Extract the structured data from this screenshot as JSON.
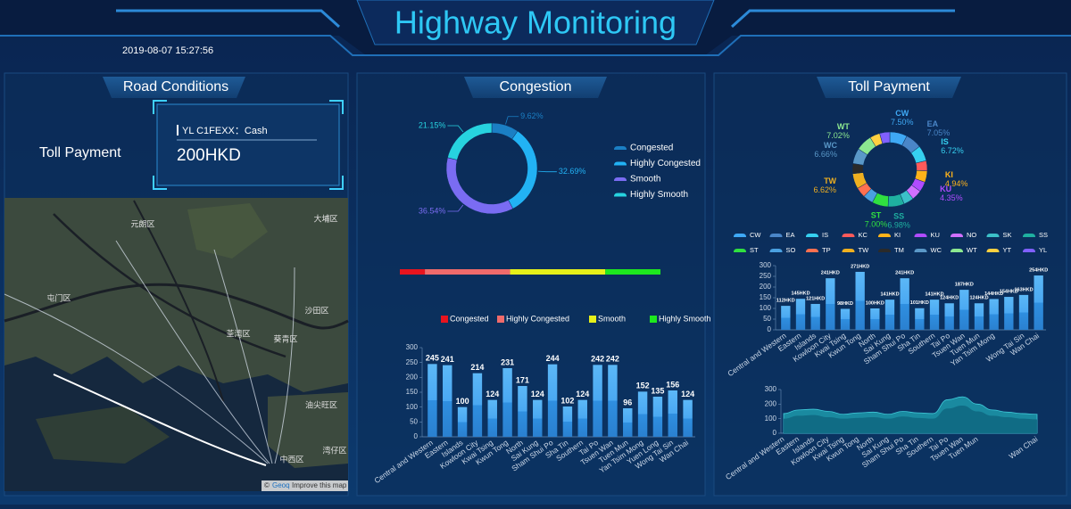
{
  "header": {
    "title": "Highway Monitoring",
    "datetime": "2019-08-07 15:27:56"
  },
  "road_conditions": {
    "title": "Road Conditions",
    "label": "Toll Payment",
    "plate": "YL C1FEXX：Cash",
    "amount": "200HKD",
    "map_labels": [
      "元朗区",
      "屯门区",
      "大埔区",
      "沙田区",
      "荃湾区",
      "葵青区",
      "油尖旺区",
      "湾仔区",
      "中西区"
    ],
    "attribution": {
      "prefix": "©",
      "link": "Geoq",
      "suffix": "Improve this map"
    }
  },
  "congestion": {
    "title": "Congestion"
  },
  "toll_payment": {
    "title": "Toll Payment"
  },
  "chart_data": [
    {
      "type": "pie",
      "donut": true,
      "categories": [
        "Congested",
        "Highly Congested",
        "Smooth",
        "Highly Smooth"
      ],
      "values": [
        9.62,
        32.69,
        36.54,
        21.15
      ],
      "value_labels": [
        "9.62%",
        "32.69%",
        "36.54%",
        "21.15%"
      ],
      "colors": [
        "#1b7fc4",
        "#22b2f4",
        "#7a6cf2",
        "#27d3df"
      ]
    },
    {
      "type": "bar",
      "stacked": true,
      "orientation": "horizontal",
      "series": [
        {
          "name": "Congested",
          "color": "#e8141e",
          "values": [
            9.62
          ]
        },
        {
          "name": "Highly Congested",
          "color": "#f06b6b",
          "values": [
            32.69
          ]
        },
        {
          "name": "Smooth",
          "color": "#e6f01a",
          "values": [
            36.54
          ]
        },
        {
          "name": "Highly Smooth",
          "color": "#1ee81e",
          "values": [
            21.15
          ]
        }
      ]
    },
    {
      "type": "bar",
      "categories": [
        "Central and Western",
        "Eastern",
        "Islands",
        "Kowloon City",
        "Kwai Tsing",
        "Kwun Tong",
        "North",
        "Sai Kung",
        "Sham Shui Po",
        "Sha Tin",
        "Southern",
        "Tai Po",
        "Tsuen Wan",
        "Tuen Mun",
        "Yan Tsim Mong",
        "Yuen Long",
        "Wong Tai Sin",
        "Wan Chai"
      ],
      "values": [
        245,
        241,
        100,
        214,
        124,
        231,
        171,
        124,
        244,
        102,
        124,
        242,
        242,
        96,
        152,
        135,
        156,
        124
      ],
      "color": "#3a9ff0",
      "ylim": [
        0,
        300
      ],
      "yticks": [
        0,
        50,
        100,
        150,
        200,
        250,
        300
      ],
      "grid": false
    },
    {
      "type": "pie",
      "donut": true,
      "categories": [
        "CW",
        "EA",
        "IS",
        "KC",
        "KI",
        "KU",
        "NO",
        "SK",
        "SS",
        "ST",
        "SO",
        "TP",
        "TW",
        "TM",
        "WC",
        "WT",
        "YT",
        "YL"
      ],
      "values": [
        7.5,
        7.05,
        6.72,
        4.4,
        4.94,
        4.35,
        4.4,
        4.4,
        6.98,
        7.0,
        4.4,
        4.39,
        6.62,
        4.39,
        6.66,
        7.02,
        4.39,
        4.39
      ],
      "value_labels": [
        "7.50%",
        "7.05%",
        "6.72%",
        null,
        "4.94%",
        "4.35%",
        null,
        null,
        "6.98%",
        "7.00%",
        null,
        null,
        "6.62%",
        null,
        "6.66%",
        "7.02%",
        null,
        null
      ],
      "colors": [
        "#3fa9f5",
        "#4a86c8",
        "#36d0f0",
        "#ff5a5a",
        "#ffb31a",
        "#b04cff",
        "#d070ff",
        "#3cc0c8",
        "#1fb0a0",
        "#30e040",
        "#4aa0e0",
        "#ff7050",
        "#f0b020",
        "#2a2a2a",
        "#5a98c8",
        "#8ce890",
        "#ffd040",
        "#8060ff"
      ]
    },
    {
      "type": "bar",
      "categories": [
        "Central and Western",
        "Eastern",
        "Islands",
        "Kowloon City",
        "Kwai Tsing",
        "Kwun Tong",
        "North",
        "Sai Kung",
        "Sham Shui Po",
        "Sha Tin",
        "Southern",
        "Tai Po",
        "Tsuen Wan",
        "Tuen Mun",
        "Yan Tsim Mong",
        null,
        "Wong Tai Sin",
        "Wan Chai"
      ],
      "values": [
        112,
        145,
        121,
        241,
        98,
        271,
        100,
        141,
        241,
        101,
        141,
        124,
        187,
        124,
        144,
        154,
        163,
        254
      ],
      "value_labels": [
        "112HKD",
        "145HKD",
        "121HKD",
        "241HKD",
        "98HKD",
        "271HKD",
        "100HKD",
        "141HKD",
        "241HKD",
        "101HKD",
        "141HKD",
        "124HKD",
        "187HKD",
        "124HKD",
        "144HKD",
        "154HKD",
        "163HKD",
        "254HKD"
      ],
      "color": "#3a9ff0",
      "ylim": [
        0,
        300
      ],
      "yticks": [
        0,
        50,
        100,
        150,
        200,
        250,
        300
      ],
      "grid": false
    },
    {
      "type": "area",
      "categories": [
        "Central and Western",
        "Eastern",
        "Islands",
        "Kowloon City",
        "Kwai Tsing",
        "Kwun Tong",
        "North",
        "Sai Kung",
        "Sham Shui Po",
        "Sha Tin",
        "Southern",
        "Tai Po",
        "Tsuen Wan",
        "Tuen Mun",
        null,
        null,
        null,
        "Wan Chai"
      ],
      "series": [
        {
          "color": "#1d9aab",
          "values": [
            135,
            160,
            165,
            150,
            130,
            140,
            145,
            130,
            150,
            140,
            135,
            230,
            250,
            200,
            160,
            145,
            135,
            130
          ]
        },
        {
          "color": "#0f6680",
          "values": [
            100,
            120,
            125,
            110,
            100,
            105,
            110,
            100,
            115,
            105,
            100,
            170,
            190,
            150,
            120,
            110,
            100,
            95
          ]
        }
      ],
      "ylim": [
        0,
        300
      ],
      "yticks": [
        0,
        100,
        200,
        300
      ],
      "grid": false
    }
  ]
}
